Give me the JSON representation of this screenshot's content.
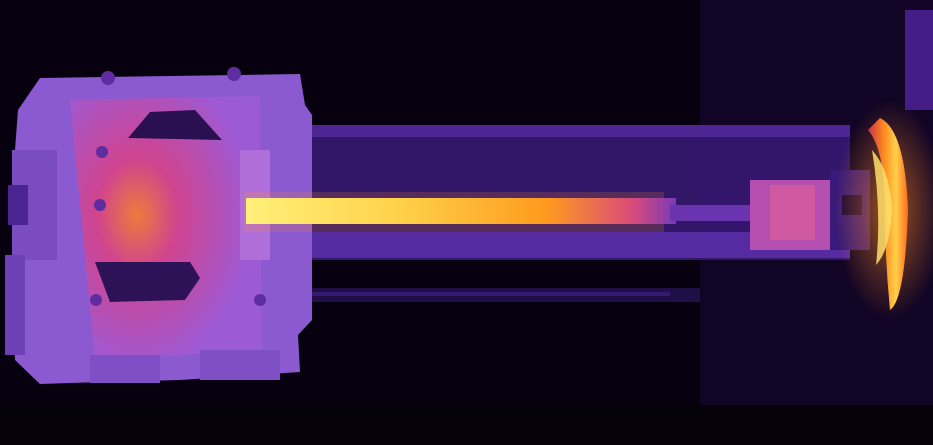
{
  "image": {
    "kind": "thermal-infrared-photo",
    "subject": "heated-rod-assembly",
    "palette": "inferno-like",
    "colors": {
      "background": "#07010f",
      "cold": "#2a0c55",
      "cool": "#5c2aa8",
      "mid": "#8a4fd1",
      "warm": "#c13fa6",
      "hot": "#f0612a",
      "hotter": "#ffa21c",
      "hottest": "#fff07a"
    }
  }
}
